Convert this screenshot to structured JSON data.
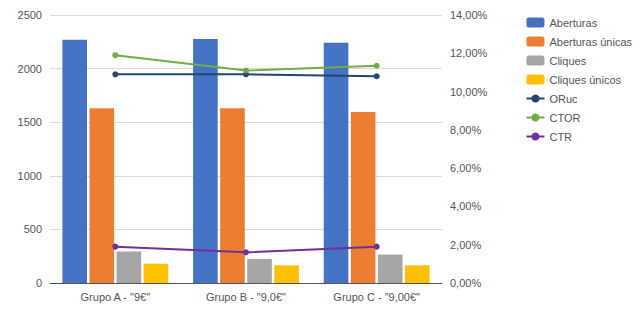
{
  "chart_data": {
    "type": "bar",
    "categories": [
      "Grupo A - \"9€\"",
      "Grupo B - \"9,0€\"",
      "Grupo C - \"9,00€\""
    ],
    "series": [
      {
        "name": "Aberturas",
        "color": "#4472C4",
        "values": [
          2270,
          2275,
          2240
        ]
      },
      {
        "name": "Aberturas únicas",
        "color": "#ED7D31",
        "values": [
          1630,
          1630,
          1595
        ]
      },
      {
        "name": "Cliques",
        "color": "#A5A5A5",
        "values": [
          295,
          225,
          265
        ]
      },
      {
        "name": "Cliques únicos",
        "color": "#FFC000",
        "values": [
          180,
          165,
          165
        ]
      },
      {
        "name": "ORuc",
        "type": "line",
        "axis": "y2",
        "color": "#264478",
        "marker": "circle",
        "values": [
          0.109,
          0.109,
          0.108
        ]
      },
      {
        "name": "CTOR",
        "type": "line",
        "axis": "y2",
        "color": "#70AD47",
        "marker": "circle",
        "values": [
          0.119,
          0.111,
          0.1135
        ]
      },
      {
        "name": "CTR",
        "type": "line",
        "axis": "y2",
        "color": "#7030A0",
        "marker": "circle",
        "values": [
          0.019,
          0.016,
          0.019
        ]
      }
    ],
    "ylim": [
      0,
      2500
    ],
    "yticks": [
      0,
      500,
      1000,
      1500,
      2000,
      2500
    ],
    "y2lim": [
      0,
      0.14
    ],
    "y2ticks": [
      {
        "value": 0,
        "label": "0,00%"
      },
      {
        "value": 0.02,
        "label": "2,00%"
      },
      {
        "value": 0.04,
        "label": "4,00%"
      },
      {
        "value": 0.06,
        "label": "6,00%"
      },
      {
        "value": 0.08,
        "label": "8,00%"
      },
      {
        "value": 0.1,
        "label": "10,00%"
      },
      {
        "value": 0.12,
        "label": "12,00%"
      },
      {
        "value": 0.14,
        "label": "14,00%"
      }
    ],
    "grid": true,
    "legend": "right"
  }
}
